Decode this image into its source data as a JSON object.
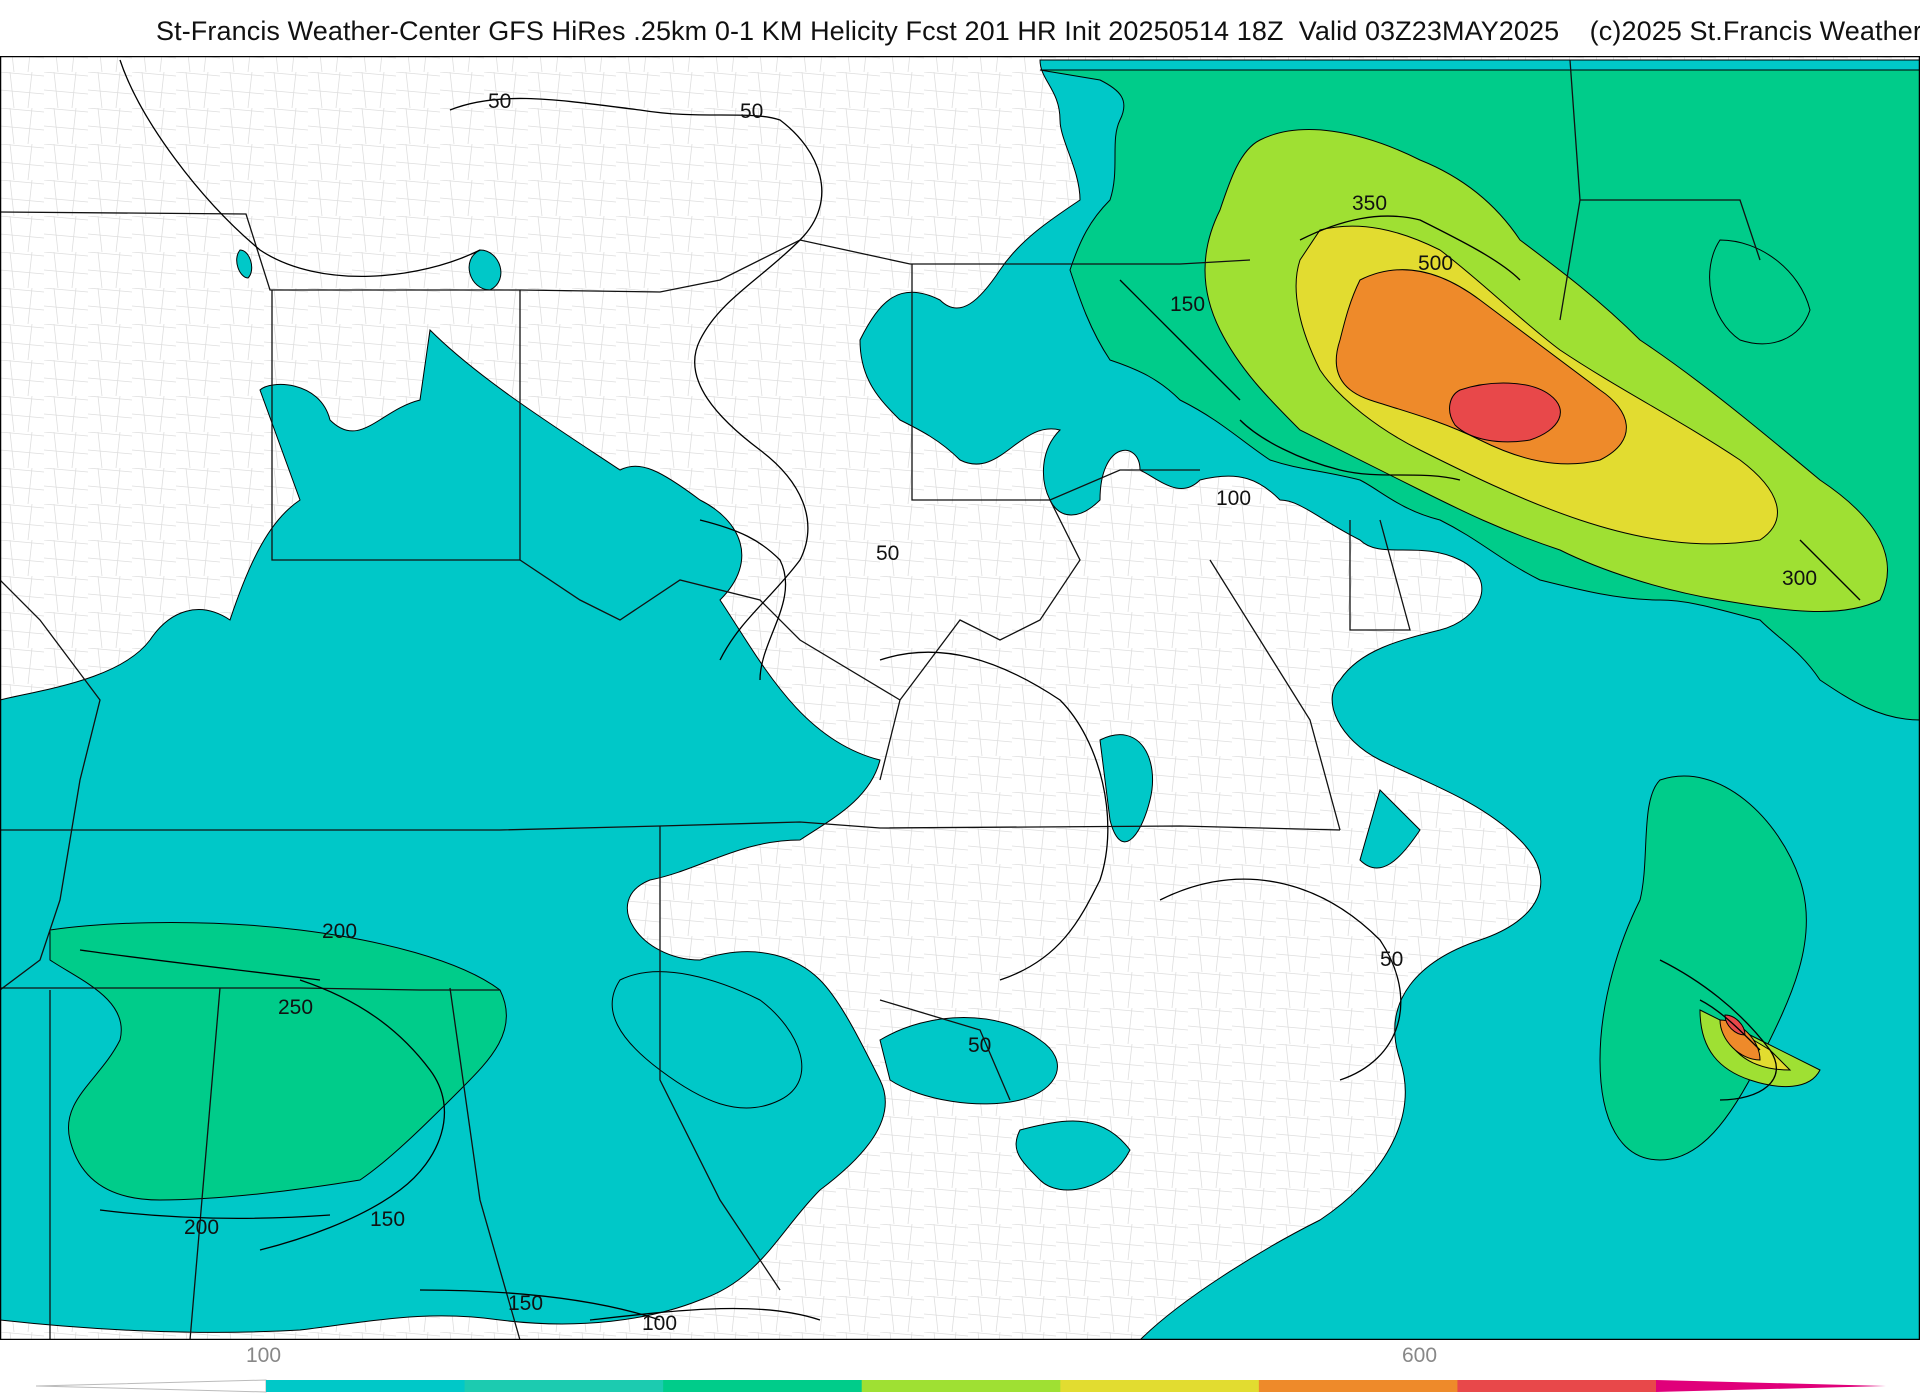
{
  "header": {
    "title": "St-Francis Weather-Center GFS HiRes .25km 0-1 KM Helicity Fcst 201 HR Init 20250514 18Z  Valid 03Z23MAY2025    (c)2025 St.Francis Weather"
  },
  "map": {
    "field": "0-1 KM Helicity",
    "contour_labels": [
      "50",
      "50",
      "50",
      "50",
      "50",
      "100",
      "100",
      "150",
      "150",
      "150",
      "200",
      "200",
      "250",
      "300",
      "350",
      "500"
    ],
    "colors": {
      "below_100": "#ffffff",
      "band_100": "#00c8c8",
      "band_200": "#00cc8a",
      "band_300": "#9fe033",
      "band_350": "#e2dc30",
      "band_500": "#ee8a2a",
      "band_600": "#e8484a",
      "band_700": "#e0007a",
      "state_lines": "#111111",
      "county_lines": "#aaaaaa",
      "contours": "#000000"
    }
  },
  "legend": {
    "labels": [
      "100",
      "600"
    ],
    "colors": [
      "#00c8c8",
      "#1ccbb0",
      "#00cc8a",
      "#9fe033",
      "#e2dc30",
      "#ee8a2a",
      "#e8484a",
      "#e0007a"
    ]
  }
}
